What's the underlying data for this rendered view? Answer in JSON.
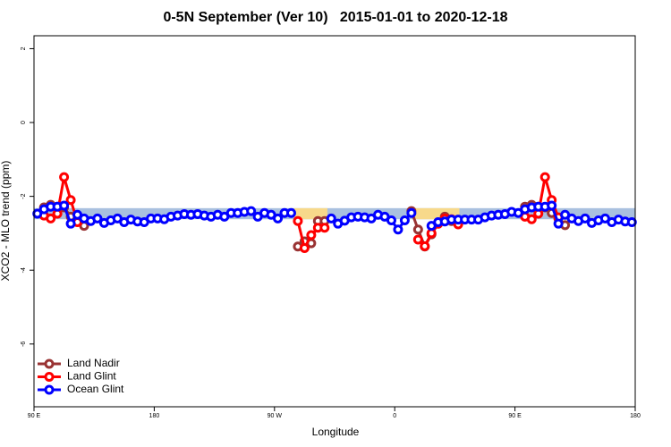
{
  "chart_data": {
    "type": "line",
    "title": "0-5N September (Ver 10)   2015-01-01 to 2020-12-18",
    "xlabel": "Longitude",
    "ylabel": "XCO2 - MLO trend (ppm)",
    "xlim": [
      90,
      540
    ],
    "xticks": [
      {
        "value": 90,
        "label": "90 E"
      },
      {
        "value": 180,
        "label": "180"
      },
      {
        "value": 270,
        "label": "90 W"
      },
      {
        "value": 360,
        "label": "0"
      },
      {
        "value": 450,
        "label": "90 E"
      },
      {
        "value": 540,
        "label": "180"
      }
    ],
    "ylim": [
      -7.7,
      2.35
    ],
    "yticks": [
      2,
      0,
      -2,
      -4,
      -6
    ],
    "legend": "bottom-left",
    "bands": [
      {
        "x": [
          90,
          540
        ],
        "y": [
          -2.62,
          -2.32
        ],
        "color": "#a9c0df"
      },
      {
        "x": [
          284.8,
          309.6
        ],
        "y": [
          -2.62,
          -2.32
        ],
        "color": "#f7d98b"
      },
      {
        "x": [
          374.8,
          408.4
        ],
        "y": [
          -2.62,
          -2.32
        ],
        "color": "#f7d98b"
      }
    ],
    "series": [
      {
        "name": "Land Nadir",
        "color": "#993333",
        "x": [
          97.5,
          102.5,
          107.5,
          112.5,
          117.5,
          122.5,
          127.5,
          null,
          287.5,
          292.5,
          297.5,
          302.5,
          307.5,
          null,
          372.5,
          377.5,
          382.5,
          387.5,
          392.5,
          397.5,
          402.5,
          407.5,
          null,
          457.5,
          462.5,
          467.5,
          472.5,
          477.5,
          482.5,
          487.5
        ],
        "values": [
          -2.3,
          -2.23,
          -2.28,
          -2.3,
          -2.55,
          -2.65,
          -2.8,
          null,
          -3.36,
          -3.22,
          -3.27,
          -2.67,
          -2.67,
          null,
          -2.4,
          -2.9,
          -3.36,
          -3.03,
          -2.74,
          -2.55,
          -2.67,
          -2.7,
          null,
          -2.28,
          -2.23,
          -2.28,
          -2.3,
          -2.45,
          -2.6,
          -2.78
        ]
      },
      {
        "name": "Land Glint",
        "color": "#ff0000",
        "x": [
          97.5,
          102.5,
          107.5,
          112.5,
          117.5,
          122.5,
          null,
          287.5,
          292.5,
          297.5,
          302.5,
          307.5,
          null,
          377.5,
          382.5,
          387.5,
          392.5,
          397.5,
          402.5,
          407.5,
          null,
          457.5,
          462.5,
          467.5,
          472.5,
          477.5,
          482.5
        ],
        "values": [
          -2.52,
          -2.6,
          -2.47,
          -1.48,
          -2.1,
          -2.7,
          null,
          -2.67,
          -3.4,
          -3.05,
          -2.85,
          -2.85,
          null,
          -3.17,
          -3.35,
          -3.0,
          -2.74,
          -2.6,
          -2.62,
          -2.76,
          null,
          -2.55,
          -2.62,
          -2.47,
          -1.48,
          -2.1,
          -2.57
        ]
      },
      {
        "name": "Ocean Glint",
        "color": "#0000ff",
        "x": [
          92.5,
          97.5,
          102.5,
          107.5,
          112.5,
          117.5,
          122.5,
          127.5,
          132.5,
          137.5,
          142.5,
          147.5,
          152.5,
          157.5,
          162.5,
          167.5,
          172.5,
          177.5,
          182.5,
          187.5,
          192.5,
          197.5,
          202.5,
          207.5,
          212.5,
          217.5,
          222.5,
          227.5,
          232.5,
          237.5,
          242.5,
          247.5,
          252.5,
          257.5,
          262.5,
          267.5,
          272.5,
          277.5,
          282.5,
          287.5,
          292.5,
          297.5,
          302.5,
          307.5,
          312.5,
          317.5,
          322.5,
          327.5,
          332.5,
          337.5,
          342.5,
          347.5,
          352.5,
          357.5,
          362.5,
          367.5,
          372.5,
          377.5,
          382.5,
          387.5,
          392.5,
          397.5,
          402.5,
          407.5,
          412.5,
          417.5,
          422.5,
          427.5,
          432.5,
          437.5,
          442.5,
          447.5,
          452.5,
          457.5,
          462.5,
          467.5,
          472.5,
          477.5,
          482.5,
          487.5,
          492.5,
          497.5,
          502.5,
          507.5,
          512.5,
          517.5,
          522.5,
          527.5,
          532.5,
          537.5
        ],
        "values": [
          -2.47,
          -2.35,
          -2.28,
          -2.28,
          -2.25,
          -2.74,
          -2.5,
          -2.6,
          -2.67,
          -2.6,
          -2.72,
          -2.65,
          -2.6,
          -2.7,
          -2.63,
          -2.68,
          -2.7,
          -2.6,
          -2.6,
          -2.62,
          -2.55,
          -2.52,
          -2.48,
          -2.5,
          -2.48,
          -2.52,
          -2.55,
          -2.5,
          -2.55,
          -2.45,
          -2.45,
          -2.42,
          -2.4,
          -2.55,
          -2.45,
          -2.5,
          -2.6,
          -2.45,
          -2.45,
          null,
          null,
          null,
          null,
          null,
          -2.6,
          -2.74,
          -2.66,
          -2.57,
          -2.55,
          -2.57,
          -2.6,
          -2.5,
          -2.55,
          -2.65,
          -2.9,
          -2.65,
          -2.45,
          null,
          null,
          -2.8,
          -2.7,
          -2.68,
          -2.63,
          -2.63,
          -2.63,
          -2.63,
          -2.63,
          -2.57,
          -2.52,
          -2.5,
          -2.48,
          -2.42,
          -2.45,
          -2.35,
          -2.3,
          -2.28,
          -2.28,
          -2.25,
          -2.74,
          -2.5,
          -2.6,
          -2.67,
          -2.6,
          -2.72,
          -2.65,
          -2.6,
          -2.7,
          -2.63,
          -2.68,
          -2.7
        ]
      }
    ]
  }
}
